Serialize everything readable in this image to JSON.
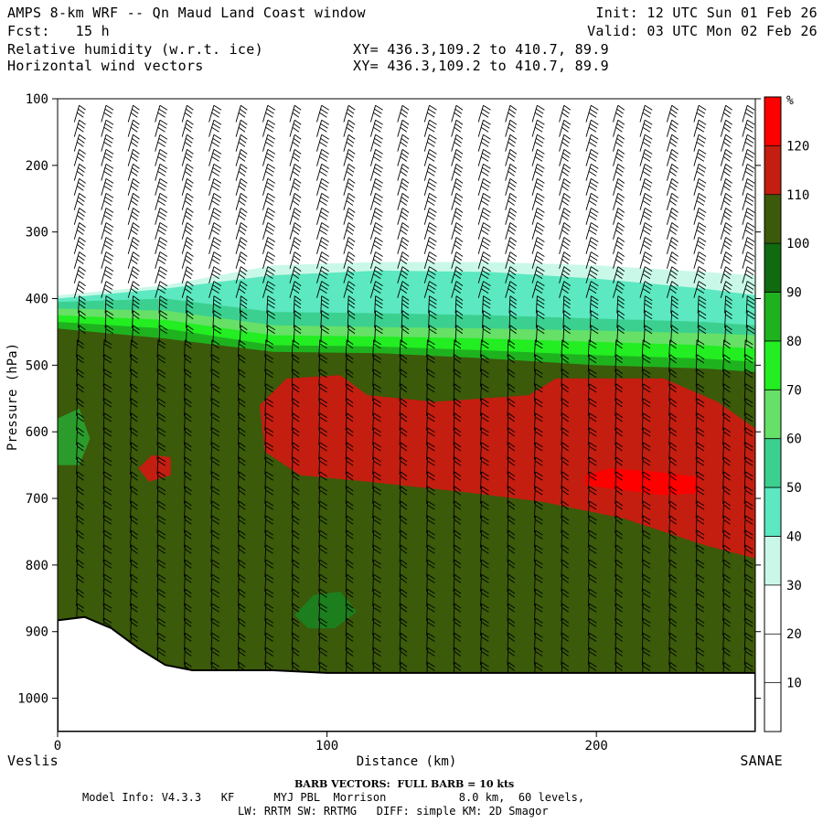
{
  "header": {
    "title": "AMPS 8-km WRF -- Qn Maud Land Coast window",
    "forecast": "Fcst:   15 h",
    "field1": "Relative humidity (w.r.t. ice)",
    "field2": "Horizontal wind vectors",
    "xy1": "XY= 436.3,109.2 to 410.7, 89.9",
    "xy2": "XY= 436.3,109.2 to 410.7, 89.9",
    "init": "Init: 12 UTC Sun 01 Feb 26",
    "valid": "Valid: 03 UTC Mon 02 Feb 26"
  },
  "footer": {
    "left_endpoint": "Veslis",
    "right_endpoint": "SANAE",
    "barb_note": "BARB VECTORS:  FULL BARB = 10 kts",
    "model_line1": "Model Info: V4.3.3   KF      MYJ PBL  Morrison           8.0 km,  60 levels,",
    "model_line2": "LW: RRTM SW: RRTMG   DIFF: simple KM: 2D Smagor"
  },
  "chart_data": {
    "type": "heatmap",
    "title": "Relative humidity (w.r.t. ice)",
    "xlabel": "Distance (km)",
    "ylabel": "Pressure (hPa)",
    "xlim": [
      0,
      259
    ],
    "ylim": [
      1050,
      100
    ],
    "x_ticks": [
      0,
      100,
      200
    ],
    "y_ticks": [
      100,
      200,
      300,
      400,
      500,
      600,
      700,
      800,
      900,
      1000
    ],
    "colorbar": {
      "unit": "%",
      "levels": [
        10,
        20,
        30,
        40,
        50,
        60,
        70,
        80,
        90,
        100,
        110,
        120
      ],
      "colors": [
        "#ffffff",
        "#ffffff",
        "#ffffff",
        "#caf8e8",
        "#5ce8c0",
        "#3cd090",
        "#66e066",
        "#22ee22",
        "#1fb21f",
        "#106a10",
        "#3b5a0a",
        "#c41e10",
        "#ff0000"
      ]
    },
    "rh_layers": [
      {
        "level": "30-40",
        "color": "#caf8e8",
        "top": [
          [
            0,
            395
          ],
          [
            40,
            380
          ],
          [
            80,
            350
          ],
          [
            120,
            345
          ],
          [
            160,
            345
          ],
          [
            200,
            350
          ],
          [
            240,
            360
          ],
          [
            259,
            365
          ]
        ]
      },
      {
        "level": "40-50",
        "color": "#5ce8c0",
        "top": [
          [
            0,
            400
          ],
          [
            40,
            385
          ],
          [
            80,
            365
          ],
          [
            120,
            358
          ],
          [
            160,
            360
          ],
          [
            200,
            370
          ],
          [
            240,
            385
          ],
          [
            259,
            395
          ]
        ]
      },
      {
        "level": "50-60",
        "color": "#3cd090",
        "top": [
          [
            0,
            405
          ],
          [
            40,
            400
          ],
          [
            80,
            420
          ],
          [
            120,
            422
          ],
          [
            160,
            425
          ],
          [
            200,
            430
          ],
          [
            240,
            435
          ],
          [
            259,
            440
          ]
        ]
      },
      {
        "level": "60-70",
        "color": "#66e066",
        "top": [
          [
            0,
            415
          ],
          [
            40,
            418
          ],
          [
            80,
            440
          ],
          [
            120,
            443
          ],
          [
            160,
            445
          ],
          [
            200,
            448
          ],
          [
            240,
            452
          ],
          [
            259,
            455
          ]
        ]
      },
      {
        "level": "70-80",
        "color": "#22ee22",
        "top": [
          [
            0,
            425
          ],
          [
            40,
            432
          ],
          [
            80,
            455
          ],
          [
            120,
            457
          ],
          [
            160,
            460
          ],
          [
            200,
            465
          ],
          [
            240,
            470
          ],
          [
            259,
            475
          ]
        ]
      },
      {
        "level": "80-90",
        "color": "#1fb21f",
        "top": [
          [
            0,
            435
          ],
          [
            40,
            445
          ],
          [
            80,
            470
          ],
          [
            120,
            472
          ],
          [
            160,
            478
          ],
          [
            200,
            485
          ],
          [
            240,
            490
          ],
          [
            259,
            495
          ]
        ]
      },
      {
        "level": "90-110",
        "color": "#3b5a0a",
        "top": [
          [
            0,
            445
          ],
          [
            40,
            460
          ],
          [
            80,
            480
          ],
          [
            120,
            482
          ],
          [
            160,
            490
          ],
          [
            200,
            500
          ],
          [
            240,
            505
          ],
          [
            259,
            510
          ]
        ]
      }
    ],
    "moist_patches": [
      {
        "level": "110-120",
        "color": "#c41e10",
        "outline": [
          [
            75,
            560
          ],
          [
            85,
            520
          ],
          [
            105,
            515
          ],
          [
            115,
            545
          ],
          [
            140,
            555
          ],
          [
            175,
            545
          ],
          [
            185,
            520
          ],
          [
            225,
            520
          ],
          [
            245,
            555
          ],
          [
            259,
            595
          ],
          [
            259,
            790
          ],
          [
            240,
            770
          ],
          [
            210,
            730
          ],
          [
            180,
            705
          ],
          [
            150,
            690
          ],
          [
            115,
            675
          ],
          [
            90,
            665
          ],
          [
            77,
            630
          ]
        ]
      },
      {
        "level": "110-120",
        "color": "#c41e10",
        "outline": [
          [
            30,
            655
          ],
          [
            35,
            635
          ],
          [
            42,
            638
          ],
          [
            42,
            665
          ],
          [
            34,
            675
          ]
        ]
      },
      {
        "level": ">120",
        "color": "#ff0000",
        "outline": [
          [
            196,
            665
          ],
          [
            205,
            655
          ],
          [
            222,
            660
          ],
          [
            238,
            668
          ],
          [
            238,
            692
          ],
          [
            225,
            695
          ],
          [
            205,
            685
          ],
          [
            196,
            680
          ]
        ]
      },
      {
        "level": "90-100",
        "color": "#1d7e1d",
        "outline": [
          [
            88,
            875
          ],
          [
            95,
            845
          ],
          [
            105,
            840
          ],
          [
            111,
            870
          ],
          [
            103,
            895
          ],
          [
            93,
            895
          ]
        ]
      },
      {
        "level": "80-90",
        "color": "#2b9c2b",
        "outline": [
          [
            0,
            580
          ],
          [
            8,
            565
          ],
          [
            12,
            610
          ],
          [
            8,
            650
          ],
          [
            0,
            650
          ]
        ]
      }
    ],
    "terrain": [
      [
        0,
        883
      ],
      [
        10,
        878
      ],
      [
        20,
        895
      ],
      [
        30,
        925
      ],
      [
        40,
        950
      ],
      [
        50,
        958
      ],
      [
        80,
        958
      ],
      [
        100,
        962
      ],
      [
        259,
        962
      ]
    ],
    "wind_columns_km": [
      8,
      18,
      28,
      38,
      48,
      58,
      68,
      78,
      88,
      98,
      108,
      118,
      128,
      138,
      148,
      158,
      168,
      178,
      188,
      198,
      208,
      218,
      228,
      238,
      248,
      256
    ]
  }
}
